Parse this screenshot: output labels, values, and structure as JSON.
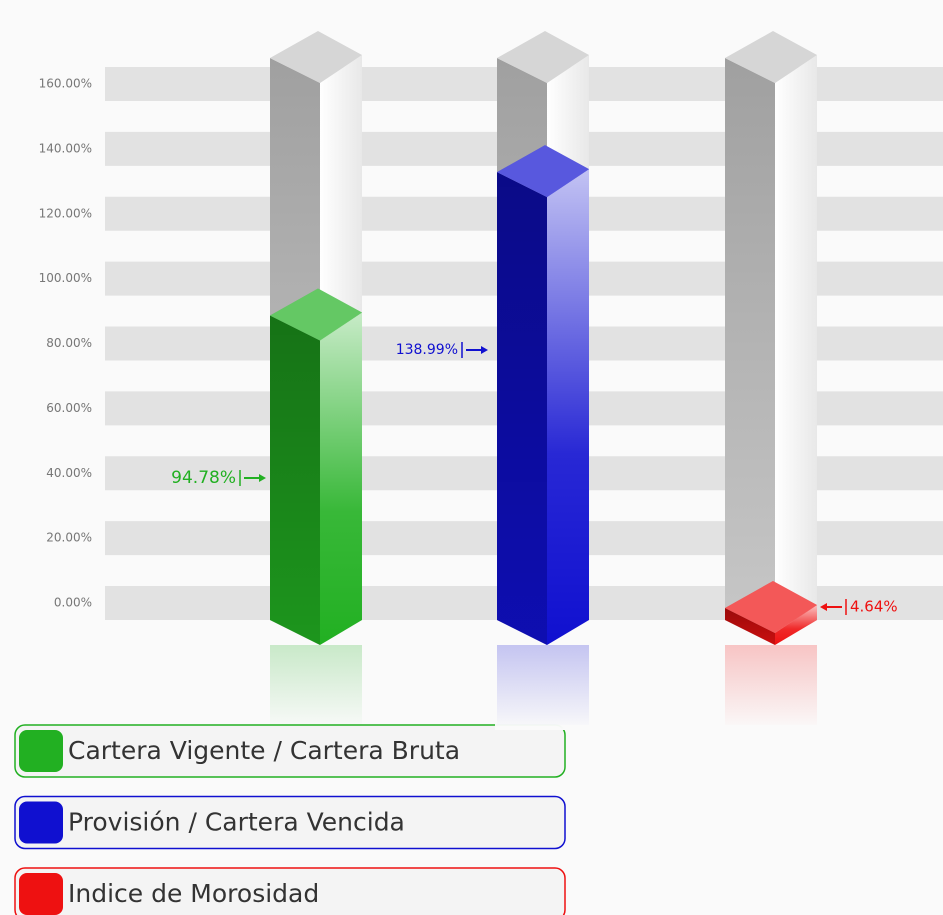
{
  "chart_data": {
    "type": "bar3d",
    "series": [
      {
        "name": "Cartera Vigente / Cartera Bruta",
        "color": "#22b022",
        "values": [
          94.78
        ],
        "value_labels": [
          "94.78%"
        ]
      },
      {
        "name": "Provisión / Cartera Vencida",
        "color": "#1010d0",
        "values": [
          138.99
        ],
        "value_labels": [
          "138.99%"
        ]
      },
      {
        "name": "Indice de Morosidad",
        "color": "#ee1111",
        "values": [
          4.64
        ],
        "value_labels": [
          "4.64%"
        ]
      }
    ],
    "ylim": [
      0,
      160
    ],
    "yticks": [
      {
        "value": 0,
        "label": "0.00%"
      },
      {
        "value": 20,
        "label": "20.00%"
      },
      {
        "value": 40,
        "label": "40.00%"
      },
      {
        "value": 60,
        "label": "60.00%"
      },
      {
        "value": 80,
        "label": "80.00%"
      },
      {
        "value": 100,
        "label": "100.00%"
      },
      {
        "value": 120,
        "label": "120.00%"
      },
      {
        "value": 140,
        "label": "140.00%"
      },
      {
        "value": 160,
        "label": "160.00%"
      }
    ],
    "grid": true
  }
}
